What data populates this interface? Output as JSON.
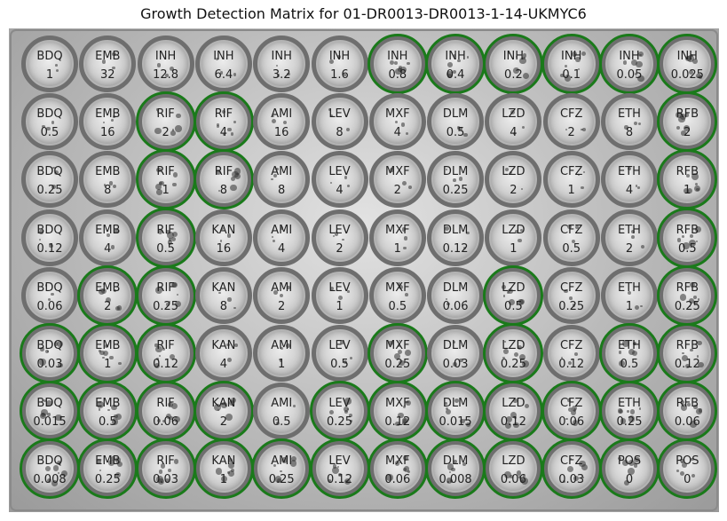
{
  "title": "Growth Detection Matrix for 01-DR0013-DR0013-1-14-UKMYC6",
  "growth_color": "#1a7a1a",
  "wells": [
    [
      {
        "drug": "BDQ",
        "conc": "1",
        "growth": false
      },
      {
        "drug": "EMB",
        "conc": "32",
        "growth": false
      },
      {
        "drug": "INH",
        "conc": "12.8",
        "growth": false
      },
      {
        "drug": "INH",
        "conc": "6.4",
        "growth": false
      },
      {
        "drug": "INH",
        "conc": "3.2",
        "growth": false
      },
      {
        "drug": "INH",
        "conc": "1.6",
        "growth": false
      },
      {
        "drug": "INH",
        "conc": "0.8",
        "growth": true
      },
      {
        "drug": "INH",
        "conc": "0.4",
        "growth": true
      },
      {
        "drug": "INH",
        "conc": "0.2",
        "growth": true
      },
      {
        "drug": "INH",
        "conc": "0.1",
        "growth": true
      },
      {
        "drug": "INH",
        "conc": "0.05",
        "growth": true
      },
      {
        "drug": "INH",
        "conc": "0.025",
        "growth": true
      }
    ],
    [
      {
        "drug": "BDQ",
        "conc": "0.5",
        "growth": false
      },
      {
        "drug": "EMB",
        "conc": "16",
        "growth": false
      },
      {
        "drug": "RIF",
        "conc": "2",
        "growth": true
      },
      {
        "drug": "RIF",
        "conc": "4",
        "growth": true
      },
      {
        "drug": "AMI",
        "conc": "16",
        "growth": false
      },
      {
        "drug": "LEV",
        "conc": "8",
        "growth": false
      },
      {
        "drug": "MXF",
        "conc": "4",
        "growth": false
      },
      {
        "drug": "DLM",
        "conc": "0.5",
        "growth": false
      },
      {
        "drug": "LZD",
        "conc": "4",
        "growth": false
      },
      {
        "drug": "CFZ",
        "conc": "2",
        "growth": false
      },
      {
        "drug": "ETH",
        "conc": "8",
        "growth": false
      },
      {
        "drug": "RFB",
        "conc": "2",
        "growth": true
      }
    ],
    [
      {
        "drug": "BDQ",
        "conc": "0.25",
        "growth": false
      },
      {
        "drug": "EMB",
        "conc": "8",
        "growth": false
      },
      {
        "drug": "RIF",
        "conc": "1",
        "growth": true
      },
      {
        "drug": "RIF",
        "conc": "8",
        "growth": true
      },
      {
        "drug": "AMI",
        "conc": "8",
        "growth": false
      },
      {
        "drug": "LEV",
        "conc": "4",
        "growth": false
      },
      {
        "drug": "MXF",
        "conc": "2",
        "growth": false
      },
      {
        "drug": "DLM",
        "conc": "0.25",
        "growth": false
      },
      {
        "drug": "LZD",
        "conc": "2",
        "growth": false
      },
      {
        "drug": "CFZ",
        "conc": "1",
        "growth": false
      },
      {
        "drug": "ETH",
        "conc": "4",
        "growth": false
      },
      {
        "drug": "RFB",
        "conc": "1",
        "growth": true
      }
    ],
    [
      {
        "drug": "BDQ",
        "conc": "0.12",
        "growth": false
      },
      {
        "drug": "EMB",
        "conc": "4",
        "growth": false
      },
      {
        "drug": "RIF",
        "conc": "0.5",
        "growth": true
      },
      {
        "drug": "KAN",
        "conc": "16",
        "growth": false
      },
      {
        "drug": "AMI",
        "conc": "4",
        "growth": false
      },
      {
        "drug": "LEV",
        "conc": "2",
        "growth": false
      },
      {
        "drug": "MXF",
        "conc": "1",
        "growth": false
      },
      {
        "drug": "DLM",
        "conc": "0.12",
        "growth": false
      },
      {
        "drug": "LZD",
        "conc": "1",
        "growth": false
      },
      {
        "drug": "CFZ",
        "conc": "0.5",
        "growth": false
      },
      {
        "drug": "ETH",
        "conc": "2",
        "growth": false
      },
      {
        "drug": "RFB",
        "conc": "0.5",
        "growth": true
      }
    ],
    [
      {
        "drug": "BDQ",
        "conc": "0.06",
        "growth": false
      },
      {
        "drug": "EMB",
        "conc": "2",
        "growth": true
      },
      {
        "drug": "RIF",
        "conc": "0.25",
        "growth": true
      },
      {
        "drug": "KAN",
        "conc": "8",
        "growth": false
      },
      {
        "drug": "AMI",
        "conc": "2",
        "growth": false
      },
      {
        "drug": "LEV",
        "conc": "1",
        "growth": false
      },
      {
        "drug": "MXF",
        "conc": "0.5",
        "growth": false
      },
      {
        "drug": "DLM",
        "conc": "0.06",
        "growth": false
      },
      {
        "drug": "LZD",
        "conc": "0.5",
        "growth": true
      },
      {
        "drug": "CFZ",
        "conc": "0.25",
        "growth": false
      },
      {
        "drug": "ETH",
        "conc": "1",
        "growth": false
      },
      {
        "drug": "RFB",
        "conc": "0.25",
        "growth": true
      }
    ],
    [
      {
        "drug": "BDQ",
        "conc": "0.03",
        "growth": true
      },
      {
        "drug": "EMB",
        "conc": "1",
        "growth": true
      },
      {
        "drug": "RIF",
        "conc": "0.12",
        "growth": true
      },
      {
        "drug": "KAN",
        "conc": "4",
        "growth": false
      },
      {
        "drug": "AMI",
        "conc": "1",
        "growth": false
      },
      {
        "drug": "LEV",
        "conc": "0.5",
        "growth": false
      },
      {
        "drug": "MXF",
        "conc": "0.25",
        "growth": true
      },
      {
        "drug": "DLM",
        "conc": "0.03",
        "growth": false
      },
      {
        "drug": "LZD",
        "conc": "0.25",
        "growth": true
      },
      {
        "drug": "CFZ",
        "conc": "0.12",
        "growth": false
      },
      {
        "drug": "ETH",
        "conc": "0.5",
        "growth": true
      },
      {
        "drug": "RFB",
        "conc": "0.12",
        "growth": true
      }
    ],
    [
      {
        "drug": "BDQ",
        "conc": "0.015",
        "growth": true
      },
      {
        "drug": "EMB",
        "conc": "0.5",
        "growth": true
      },
      {
        "drug": "RIF",
        "conc": "0.06",
        "growth": true
      },
      {
        "drug": "KAN",
        "conc": "2",
        "growth": true
      },
      {
        "drug": "AMI",
        "conc": "0.5",
        "growth": false
      },
      {
        "drug": "LEV",
        "conc": "0.25",
        "growth": true
      },
      {
        "drug": "MXF",
        "conc": "0.12",
        "growth": true
      },
      {
        "drug": "DLM",
        "conc": "0.015",
        "growth": true
      },
      {
        "drug": "LZD",
        "conc": "0.12",
        "growth": true
      },
      {
        "drug": "CFZ",
        "conc": "0.06",
        "growth": true
      },
      {
        "drug": "ETH",
        "conc": "0.25",
        "growth": true
      },
      {
        "drug": "RFB",
        "conc": "0.06",
        "growth": true
      }
    ],
    [
      {
        "drug": "BDQ",
        "conc": "0.008",
        "growth": true
      },
      {
        "drug": "EMB",
        "conc": "0.25",
        "growth": true
      },
      {
        "drug": "RIF",
        "conc": "0.03",
        "growth": true
      },
      {
        "drug": "KAN",
        "conc": "1",
        "growth": true
      },
      {
        "drug": "AMI",
        "conc": "0.25",
        "growth": true
      },
      {
        "drug": "LEV",
        "conc": "0.12",
        "growth": true
      },
      {
        "drug": "MXF",
        "conc": "0.06",
        "growth": true
      },
      {
        "drug": "DLM",
        "conc": "0.008",
        "growth": true
      },
      {
        "drug": "LZD",
        "conc": "0.06",
        "growth": true
      },
      {
        "drug": "CFZ",
        "conc": "0.03",
        "growth": true
      },
      {
        "drug": "POS",
        "conc": "0",
        "growth": true
      },
      {
        "drug": "POS",
        "conc": "0",
        "growth": true
      }
    ]
  ]
}
